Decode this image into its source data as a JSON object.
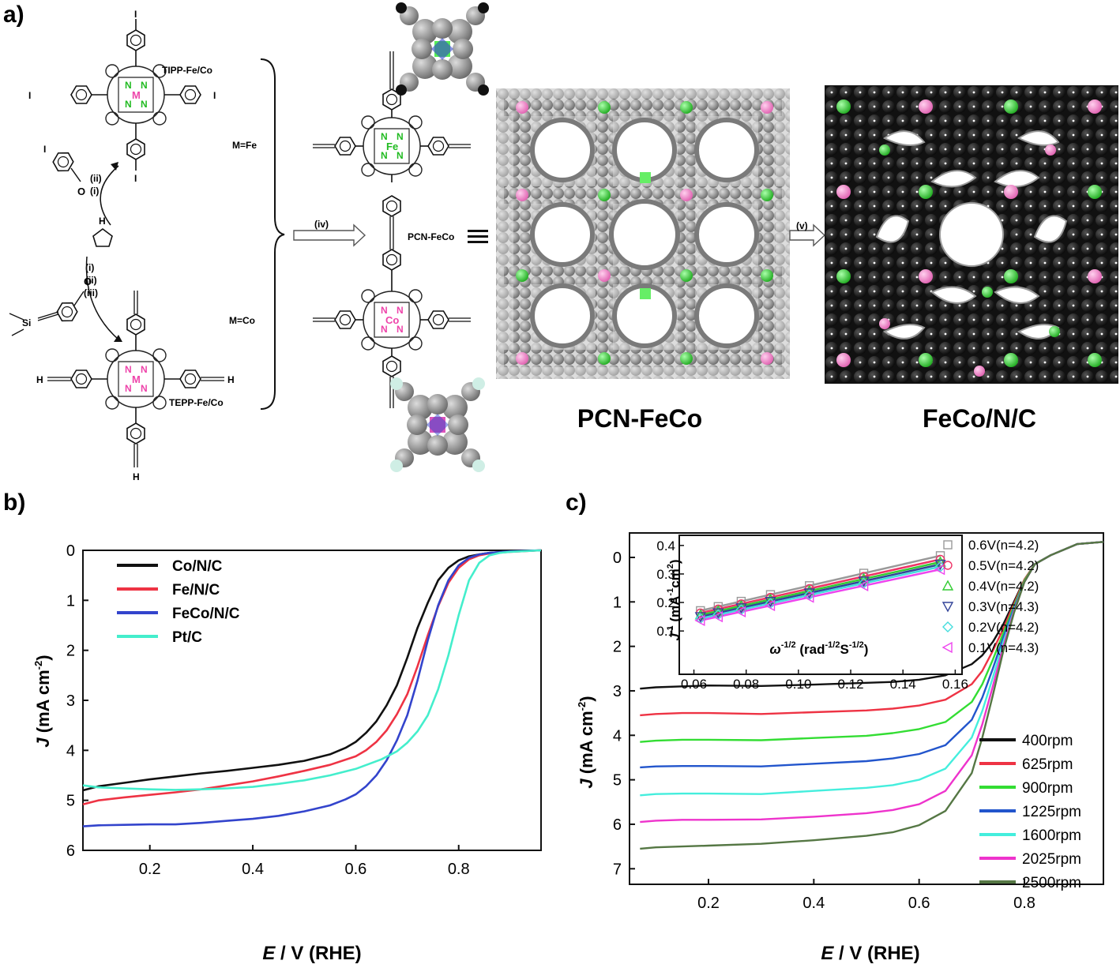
{
  "panel_labels": {
    "a": "a)",
    "b": "b)",
    "c": "c)"
  },
  "scheme": {
    "tipp": "TIPP-Fe/Co",
    "tepp": "TEPP-Fe/Co",
    "m_fe": "M=Fe",
    "m_co": "M=Co",
    "m": "M",
    "n": "N",
    "fe": "Fe",
    "co": "Co",
    "i": "I",
    "h": "H",
    "o": "O",
    "si": "Si",
    "step_i": "(i)",
    "step_ii": "(ii)",
    "step_iii": "(iii)",
    "step_iv": "(iv)",
    "step_v": "(v)",
    "pcn_inline": "PCN-FeCo",
    "pcn_caption": "PCN-FeCo",
    "feco_caption": "FeCo/N/C",
    "colors": {
      "fe_site": "#22cc22",
      "co_site": "#ee77cc",
      "framework": "#8c8c8c",
      "carbon_dark": "#1a1a1a"
    }
  },
  "chart_data": [
    {
      "type": "line",
      "panel": "b)",
      "xlabel_italic": "E",
      "xlabel_rest": " / V (RHE)",
      "ylabel_italic": "J",
      "ylabel_rest": " (mA cm",
      "ylabel_sup": "-2",
      "ylabel_close": ")",
      "xlim": [
        0.07,
        0.96
      ],
      "ylim": [
        6,
        0
      ],
      "xticks": [
        "0.2",
        "0.4",
        "0.6",
        "0.8"
      ],
      "yticks": [
        "0",
        "1",
        "2",
        "3",
        "4",
        "5",
        "6"
      ],
      "series": [
        {
          "name": "Co/N/C",
          "color": "#111111",
          "x": [
            0.07,
            0.1,
            0.15,
            0.2,
            0.25,
            0.3,
            0.35,
            0.4,
            0.45,
            0.5,
            0.55,
            0.58,
            0.6,
            0.62,
            0.64,
            0.66,
            0.68,
            0.7,
            0.72,
            0.74,
            0.76,
            0.78,
            0.8,
            0.82,
            0.84,
            0.86,
            0.9,
            0.96
          ],
          "y": [
            4.8,
            4.72,
            4.65,
            4.58,
            4.52,
            4.46,
            4.41,
            4.35,
            4.29,
            4.21,
            4.08,
            3.95,
            3.83,
            3.65,
            3.42,
            3.1,
            2.7,
            2.15,
            1.55,
            1.05,
            0.6,
            0.35,
            0.2,
            0.12,
            0.08,
            0.05,
            0.02,
            0.0
          ]
        },
        {
          "name": "Fe/N/C",
          "color": "#ee3344",
          "x": [
            0.07,
            0.1,
            0.15,
            0.2,
            0.25,
            0.3,
            0.35,
            0.4,
            0.45,
            0.5,
            0.55,
            0.6,
            0.62,
            0.64,
            0.66,
            0.68,
            0.7,
            0.72,
            0.74,
            0.76,
            0.78,
            0.8,
            0.82,
            0.84,
            0.86,
            0.9,
            0.96
          ],
          "y": [
            5.08,
            5.0,
            4.94,
            4.89,
            4.84,
            4.78,
            4.7,
            4.62,
            4.52,
            4.41,
            4.29,
            4.12,
            4.0,
            3.83,
            3.6,
            3.28,
            2.88,
            2.32,
            1.7,
            1.12,
            0.65,
            0.35,
            0.18,
            0.1,
            0.06,
            0.03,
            0.0
          ]
        },
        {
          "name": "FeCo/N/C",
          "color": "#3344cc",
          "x": [
            0.07,
            0.1,
            0.15,
            0.2,
            0.25,
            0.3,
            0.35,
            0.4,
            0.45,
            0.5,
            0.55,
            0.58,
            0.6,
            0.62,
            0.64,
            0.66,
            0.68,
            0.7,
            0.72,
            0.74,
            0.76,
            0.78,
            0.8,
            0.82,
            0.84,
            0.86,
            0.9,
            0.96
          ],
          "y": [
            5.52,
            5.5,
            5.49,
            5.48,
            5.48,
            5.45,
            5.41,
            5.37,
            5.31,
            5.22,
            5.1,
            4.98,
            4.88,
            4.72,
            4.5,
            4.2,
            3.8,
            3.3,
            2.6,
            1.8,
            1.1,
            0.6,
            0.3,
            0.15,
            0.08,
            0.05,
            0.02,
            0.0
          ]
        },
        {
          "name": "Pt/C",
          "color": "#44eecc",
          "x": [
            0.07,
            0.1,
            0.15,
            0.2,
            0.25,
            0.3,
            0.35,
            0.4,
            0.45,
            0.5,
            0.55,
            0.6,
            0.65,
            0.68,
            0.7,
            0.72,
            0.74,
            0.76,
            0.78,
            0.8,
            0.82,
            0.84,
            0.86,
            0.88,
            0.9,
            0.96
          ],
          "y": [
            4.7,
            4.74,
            4.76,
            4.78,
            4.79,
            4.78,
            4.76,
            4.73,
            4.67,
            4.6,
            4.5,
            4.37,
            4.18,
            4.02,
            3.85,
            3.62,
            3.3,
            2.78,
            2.1,
            1.3,
            0.6,
            0.25,
            0.1,
            0.05,
            0.03,
            0.0
          ]
        }
      ]
    },
    {
      "type": "line",
      "panel": "c)",
      "xlabel_italic": "E",
      "xlabel_rest": " / V (RHE)",
      "ylabel_italic": "J",
      "ylabel_rest": " (mA cm",
      "ylabel_sup": "-2",
      "ylabel_close": ")",
      "xlim": [
        0.05,
        0.95
      ],
      "ylim": [
        7.35,
        -0.55
      ],
      "xticks": [
        "0.2",
        "0.4",
        "0.6",
        "0.8"
      ],
      "yticks": [
        "0",
        "1",
        "2",
        "3",
        "4",
        "5",
        "6",
        "7"
      ],
      "series": [
        {
          "name": "400rpm",
          "color": "#111111",
          "x": [
            0.07,
            0.1,
            0.15,
            0.2,
            0.3,
            0.4,
            0.5,
            0.55,
            0.6,
            0.65,
            0.7,
            0.72,
            0.74,
            0.76,
            0.78,
            0.8,
            0.82,
            0.85,
            0.9,
            0.95
          ],
          "y": [
            2.95,
            2.92,
            2.9,
            2.88,
            2.89,
            2.86,
            2.82,
            2.8,
            2.75,
            2.65,
            2.4,
            2.2,
            1.9,
            1.5,
            1.0,
            0.5,
            0.15,
            -0.05,
            -0.3,
            -0.35
          ]
        },
        {
          "name": "625rpm",
          "color": "#ee3344",
          "x": [
            0.07,
            0.1,
            0.15,
            0.2,
            0.3,
            0.4,
            0.5,
            0.55,
            0.6,
            0.65,
            0.7,
            0.72,
            0.74,
            0.76,
            0.78,
            0.8,
            0.82,
            0.85,
            0.9,
            0.95
          ],
          "y": [
            3.55,
            3.52,
            3.5,
            3.5,
            3.52,
            3.48,
            3.44,
            3.4,
            3.33,
            3.2,
            2.85,
            2.55,
            2.1,
            1.6,
            1.05,
            0.5,
            0.15,
            -0.05,
            -0.3,
            -0.35
          ]
        },
        {
          "name": "900rpm",
          "color": "#33dd33",
          "x": [
            0.07,
            0.1,
            0.15,
            0.2,
            0.3,
            0.4,
            0.5,
            0.55,
            0.6,
            0.65,
            0.7,
            0.72,
            0.74,
            0.76,
            0.78,
            0.8,
            0.82,
            0.85,
            0.9,
            0.95
          ],
          "y": [
            4.15,
            4.12,
            4.1,
            4.1,
            4.11,
            4.06,
            4.01,
            3.95,
            3.86,
            3.7,
            3.25,
            2.85,
            2.3,
            1.7,
            1.1,
            0.52,
            0.15,
            -0.05,
            -0.3,
            -0.35
          ]
        },
        {
          "name": "1225rpm",
          "color": "#2255cc",
          "x": [
            0.07,
            0.1,
            0.15,
            0.2,
            0.3,
            0.4,
            0.5,
            0.55,
            0.6,
            0.65,
            0.7,
            0.72,
            0.74,
            0.76,
            0.78,
            0.8,
            0.82,
            0.85,
            0.9,
            0.95
          ],
          "y": [
            4.72,
            4.7,
            4.69,
            4.69,
            4.7,
            4.64,
            4.58,
            4.52,
            4.42,
            4.22,
            3.65,
            3.15,
            2.5,
            1.8,
            1.15,
            0.55,
            0.15,
            -0.05,
            -0.3,
            -0.35
          ]
        },
        {
          "name": "1600rpm",
          "color": "#44eedd",
          "x": [
            0.07,
            0.1,
            0.15,
            0.2,
            0.3,
            0.4,
            0.5,
            0.55,
            0.6,
            0.65,
            0.7,
            0.72,
            0.74,
            0.76,
            0.78,
            0.8,
            0.82,
            0.85,
            0.9,
            0.95
          ],
          "y": [
            5.35,
            5.32,
            5.31,
            5.31,
            5.32,
            5.25,
            5.18,
            5.12,
            5.0,
            4.75,
            4.05,
            3.45,
            2.7,
            1.9,
            1.2,
            0.55,
            0.15,
            -0.05,
            -0.3,
            -0.35
          ]
        },
        {
          "name": "2025rpm",
          "color": "#ee33cc",
          "x": [
            0.07,
            0.1,
            0.15,
            0.2,
            0.3,
            0.4,
            0.5,
            0.55,
            0.6,
            0.65,
            0.7,
            0.72,
            0.74,
            0.76,
            0.78,
            0.8,
            0.82,
            0.85,
            0.9,
            0.95
          ],
          "y": [
            5.95,
            5.92,
            5.9,
            5.9,
            5.89,
            5.83,
            5.75,
            5.68,
            5.55,
            5.25,
            4.45,
            3.75,
            2.9,
            2.0,
            1.22,
            0.55,
            0.15,
            -0.05,
            -0.3,
            -0.35
          ]
        },
        {
          "name": "2500rpm",
          "color": "#557744",
          "x": [
            0.07,
            0.1,
            0.15,
            0.2,
            0.3,
            0.4,
            0.5,
            0.55,
            0.6,
            0.65,
            0.7,
            0.72,
            0.74,
            0.76,
            0.78,
            0.8,
            0.82,
            0.85,
            0.9,
            0.95
          ],
          "y": [
            6.55,
            6.52,
            6.5,
            6.48,
            6.44,
            6.36,
            6.26,
            6.18,
            6.02,
            5.7,
            4.85,
            4.05,
            3.1,
            2.1,
            1.25,
            0.55,
            0.15,
            -0.05,
            -0.3,
            -0.35
          ]
        }
      ],
      "inset": {
        "type": "scatter",
        "xlabel_italic": "ω",
        "xlabel_sup": "-1/2",
        "xlabel_rest": " (rad",
        "xlabel_sup2": "-1/2",
        "xlabel_rest2": "S",
        "xlabel_sup3": "-1/2",
        "xlabel_close": ")",
        "ylabel_italic": "J",
        "ylabel_sup": "-1",
        "ylabel_rest": " (mA",
        "ylabel_sup2": "-1",
        "ylabel_rest2": "cm",
        "ylabel_sup3": "2",
        "ylabel_close": ")",
        "xlim": [
          0.055,
          0.162
        ],
        "ylim": [
          0.07,
          0.43
        ],
        "xticks": [
          "0.06",
          "0.08",
          "0.10",
          "0.12",
          "0.14",
          "0.16"
        ],
        "yticks": [
          "0.1",
          "0.2",
          "0.3",
          "0.4"
        ],
        "x": [
          0.0625,
          0.0693,
          0.0781,
          0.0893,
          0.1042,
          0.125,
          0.1543
        ],
        "series": [
          {
            "name": "0.6V(n=4.2)",
            "marker": "square",
            "color": "#999999",
            "slope": 2.1,
            "intercept": 0.04
          },
          {
            "name": "0.5V(n=4.2)",
            "marker": "circle",
            "color": "#ee3366",
            "slope": 2.05,
            "intercept": 0.035
          },
          {
            "name": "0.4V(n=4.2)",
            "marker": "triangle-up",
            "color": "#33cc33",
            "slope": 2.02,
            "intercept": 0.03
          },
          {
            "name": "0.3V(n=4.3)",
            "marker": "triangle-down",
            "color": "#334499",
            "slope": 2.0,
            "intercept": 0.025
          },
          {
            "name": "0.2V(n=4.2)",
            "marker": "diamond",
            "color": "#44dddd",
            "slope": 1.98,
            "intercept": 0.02
          },
          {
            "name": "0.1V(n=4.3)",
            "marker": "triangle-left",
            "color": "#ee44ee",
            "slope": 1.95,
            "intercept": 0.015
          }
        ]
      }
    }
  ]
}
